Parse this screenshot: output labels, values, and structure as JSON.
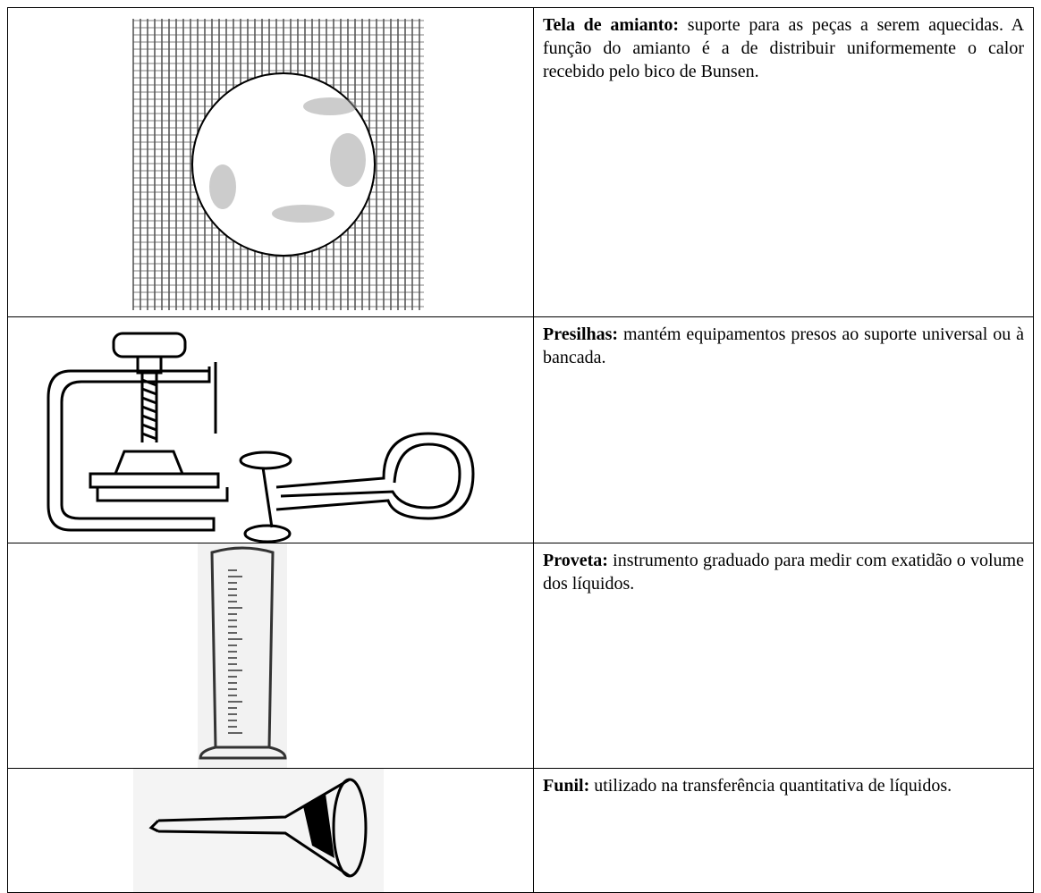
{
  "table": {
    "rows": [
      {
        "term": "Tela de amianto:",
        "text": "suporte para as peças a serem aquecidas. A função do amianto é a de distribuir uniformemente o calor recebido pelo bico de Bunsen."
      },
      {
        "term": "Presilhas:",
        "text": "mantém equipamentos presos ao suporte universal ou à bancada."
      },
      {
        "term": "Proveta:",
        "text": "instrumento graduado para medir com exatidão o volume dos líquidos."
      },
      {
        "term": "Funil:",
        "text": "utilizado na transferência quantitativa de líquidos."
      }
    ]
  }
}
